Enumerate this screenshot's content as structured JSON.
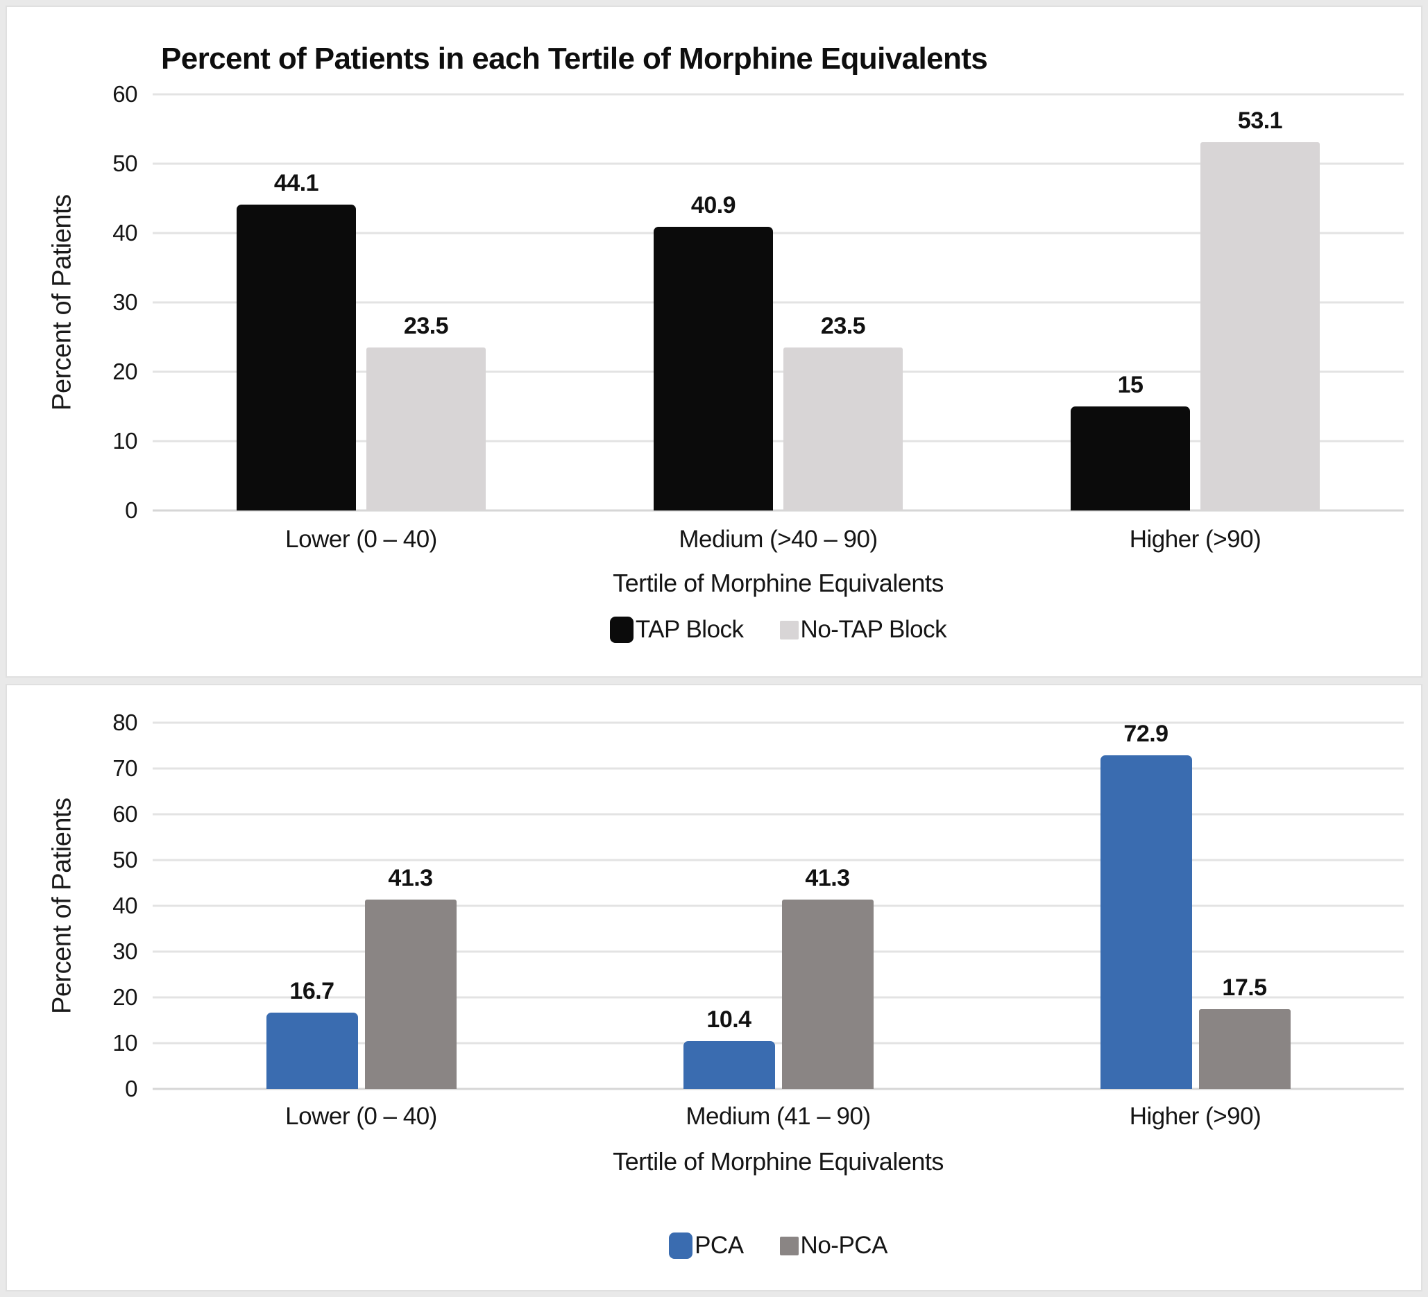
{
  "chart_data": [
    {
      "type": "bar",
      "title": "Percent of Patients in each Tertile of Morphine Equivalents",
      "categories": [
        "Lower (0 – 40)",
        "Medium (>40 – 90)",
        "Higher (>90)"
      ],
      "series": [
        {
          "name": "TAP Block",
          "color": "#0b0b0b",
          "values": [
            44.1,
            40.9,
            15
          ]
        },
        {
          "name": "No-TAP Block",
          "color": "#d8d5d6",
          "values": [
            23.5,
            23.5,
            53.1
          ]
        }
      ],
      "xlabel": "Tertile of Morphine Equivalents",
      "ylabel": "Percent of Patients",
      "ylim": [
        0,
        60
      ],
      "ytick_step": 10,
      "grid": true,
      "legend_position": "bottom",
      "gridline_color": "#e3e3e3",
      "background": "#ffffff"
    },
    {
      "type": "bar",
      "title": "",
      "categories": [
        "Lower (0 – 40)",
        "Medium (41 – 90)",
        "Higher (>90)"
      ],
      "series": [
        {
          "name": "PCA",
          "color": "#3a6cb0",
          "values": [
            16.7,
            10.4,
            72.9
          ]
        },
        {
          "name": "No-PCA",
          "color": "#8a8584",
          "values": [
            41.3,
            41.3,
            17.5
          ]
        }
      ],
      "xlabel": "Tertile of Morphine Equivalents",
      "ylabel": "Percent of Patients",
      "ylim": [
        0,
        80
      ],
      "ytick_step": 10,
      "grid": true,
      "legend_position": "bottom",
      "gridline_color": "#e3e3e3",
      "background": "#ffffff"
    }
  ]
}
